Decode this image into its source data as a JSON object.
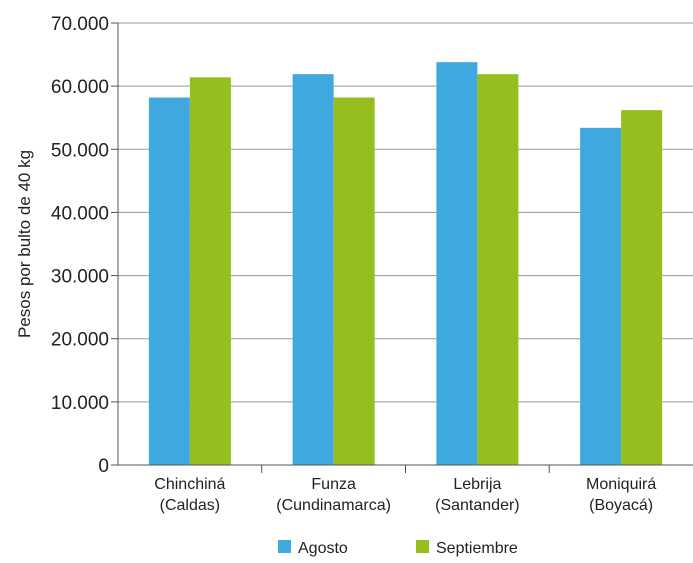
{
  "chart_data": {
    "type": "bar",
    "categories": [
      [
        "Chinchiná",
        "(Caldas)"
      ],
      [
        "Funza",
        "(Cundinamarca)"
      ],
      [
        "Lebrija",
        "(Santander)"
      ],
      [
        "Moniquirá",
        "(Boyacá)"
      ]
    ],
    "series": [
      {
        "name": "Agosto",
        "color": "#3FA9DF",
        "values": [
          58200,
          61900,
          63800,
          53400
        ]
      },
      {
        "name": "Septiembre",
        "color": "#95BE1F",
        "values": [
          61400,
          58200,
          61900,
          56200
        ]
      }
    ],
    "ylabel": "Pesos por bulto de 40 kg",
    "xlabel": "",
    "ylim": [
      0,
      70000
    ],
    "yticks": [
      0,
      10000,
      20000,
      30000,
      40000,
      50000,
      60000,
      70000
    ],
    "ytick_labels": [
      "0",
      "10.000",
      "20.000",
      "30.000",
      "40.000",
      "50.000",
      "60.000",
      "70.000"
    ],
    "grid": "horizontal",
    "legend_position": "bottom"
  }
}
